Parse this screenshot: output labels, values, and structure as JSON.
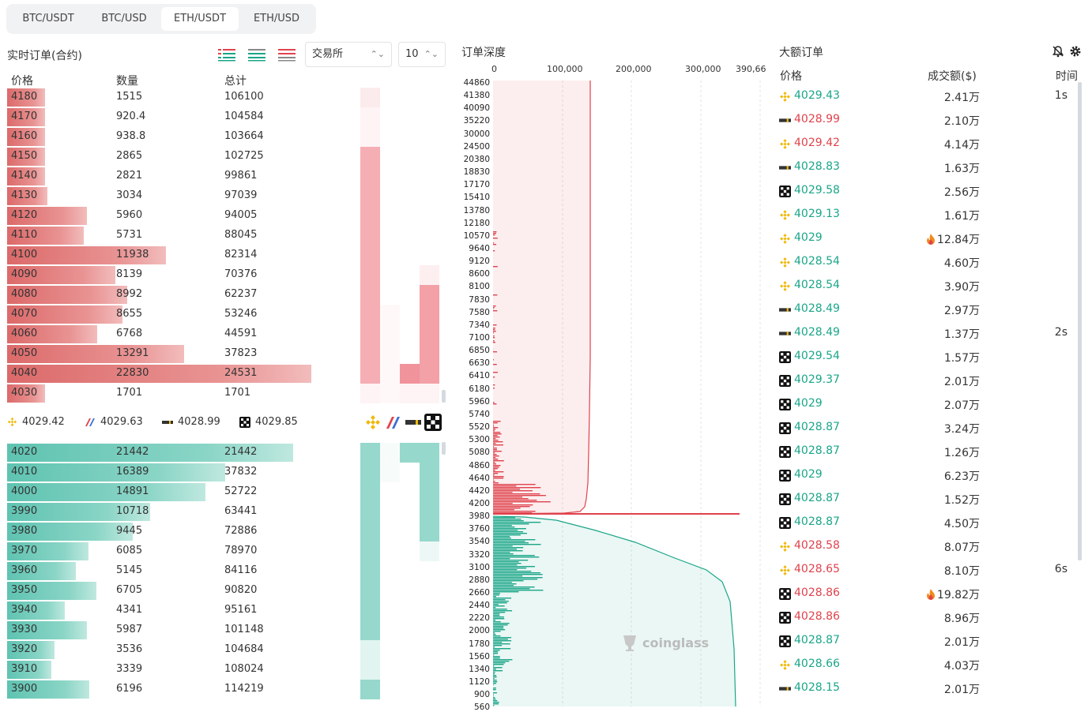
{
  "tabs": [
    {
      "label": "BTC/USDT",
      "active": false
    },
    {
      "label": "BTC/USD",
      "active": false
    },
    {
      "label": "ETH/USDT",
      "active": true
    },
    {
      "label": "ETH/USD",
      "active": false
    }
  ],
  "orderbook": {
    "title": "实时订单(合约)",
    "exchange_select": "交易所",
    "depth_select": "10",
    "headers": {
      "price": "价格",
      "qty": "数量",
      "total": "总计"
    },
    "max_qty": 22830,
    "asks": [
      {
        "price": "4180",
        "qty": "1515",
        "total": "106100"
      },
      {
        "price": "4170",
        "qty": "920.4",
        "total": "104584"
      },
      {
        "price": "4160",
        "qty": "938.8",
        "total": "103664"
      },
      {
        "price": "4150",
        "qty": "2865",
        "total": "102725"
      },
      {
        "price": "4140",
        "qty": "2821",
        "total": "99861"
      },
      {
        "price": "4130",
        "qty": "3034",
        "total": "97039"
      },
      {
        "price": "4120",
        "qty": "5960",
        "total": "94005"
      },
      {
        "price": "4110",
        "qty": "5731",
        "total": "88045"
      },
      {
        "price": "4100",
        "qty": "11938",
        "total": "82314"
      },
      {
        "price": "4090",
        "qty": "8139",
        "total": "70376"
      },
      {
        "price": "4080",
        "qty": "8992",
        "total": "62237"
      },
      {
        "price": "4070",
        "qty": "8655",
        "total": "53246"
      },
      {
        "price": "4060",
        "qty": "6768",
        "total": "44591"
      },
      {
        "price": "4050",
        "qty": "13291",
        "total": "37823"
      },
      {
        "price": "4040",
        "qty": "22830",
        "total": "24531"
      },
      {
        "price": "4030",
        "qty": "1701",
        "total": "1701"
      }
    ],
    "bids": [
      {
        "price": "4020",
        "qty": "21442",
        "total": "21442"
      },
      {
        "price": "4010",
        "qty": "16389",
        "total": "37832"
      },
      {
        "price": "4000",
        "qty": "14891",
        "total": "52722"
      },
      {
        "price": "3990",
        "qty": "10718",
        "total": "63441"
      },
      {
        "price": "3980",
        "qty": "9445",
        "total": "72886"
      },
      {
        "price": "3970",
        "qty": "6085",
        "total": "78970"
      },
      {
        "price": "3960",
        "qty": "5145",
        "total": "84116"
      },
      {
        "price": "3950",
        "qty": "6705",
        "total": "90820"
      },
      {
        "price": "3940",
        "qty": "4341",
        "total": "95161"
      },
      {
        "price": "3930",
        "qty": "5987",
        "total": "101148"
      },
      {
        "price": "3920",
        "qty": "3536",
        "total": "104684"
      },
      {
        "price": "3910",
        "qty": "3339",
        "total": "108024"
      },
      {
        "price": "3900",
        "qty": "6196",
        "total": "114219"
      }
    ],
    "exchange_prices": [
      {
        "exchange": "binance",
        "price": "4029.42"
      },
      {
        "exchange": "bitmex",
        "price": "4029.63"
      },
      {
        "exchange": "bybit",
        "price": "4028.99"
      },
      {
        "exchange": "okx",
        "price": "4029.85"
      }
    ]
  },
  "depth": {
    "title": "订单深度",
    "x_ticks": [
      "0",
      "100,000",
      "200,000",
      "300,000",
      "390,66"
    ],
    "y_ticks": [
      "44860",
      "41380",
      "40090",
      "35220",
      "30000",
      "24500",
      "20380",
      "18830",
      "17170",
      "15410",
      "13780",
      "12180",
      "10570",
      "9640",
      "9120",
      "8600",
      "8100",
      "7830",
      "7580",
      "7340",
      "7100",
      "6850",
      "6630",
      "6410",
      "6180",
      "5960",
      "5740",
      "5520",
      "5300",
      "5080",
      "4860",
      "4640",
      "4420",
      "4200",
      "3980",
      "3760",
      "3540",
      "3320",
      "3100",
      "2880",
      "2660",
      "2440",
      "2220",
      "2000",
      "1780",
      "1560",
      "1340",
      "1120",
      "900",
      "560"
    ],
    "watermark": "coinglass",
    "colors": {
      "ask": "#e0424c",
      "bid": "#1aa688"
    }
  },
  "large_orders": {
    "title": "大额订单",
    "headers": {
      "price": "价格",
      "amount": "成交额($)",
      "time": "时间"
    },
    "rows": [
      {
        "ex": "binance",
        "price": "4029.43",
        "side": "buy",
        "amount": "2.41万",
        "time": "1s",
        "hot": false
      },
      {
        "ex": "bybit",
        "price": "4028.99",
        "side": "sell",
        "amount": "2.10万",
        "time": "",
        "hot": false
      },
      {
        "ex": "binance",
        "price": "4029.42",
        "side": "sell",
        "amount": "4.14万",
        "time": "",
        "hot": false
      },
      {
        "ex": "bybit",
        "price": "4028.83",
        "side": "buy",
        "amount": "1.63万",
        "time": "",
        "hot": false
      },
      {
        "ex": "okx",
        "price": "4029.58",
        "side": "buy",
        "amount": "2.56万",
        "time": "",
        "hot": false
      },
      {
        "ex": "binance",
        "price": "4029.13",
        "side": "buy",
        "amount": "1.61万",
        "time": "",
        "hot": false
      },
      {
        "ex": "binance",
        "price": "4029",
        "side": "buy",
        "amount": "12.84万",
        "time": "",
        "hot": true
      },
      {
        "ex": "binance",
        "price": "4028.54",
        "side": "buy",
        "amount": "4.60万",
        "time": "",
        "hot": false
      },
      {
        "ex": "binance",
        "price": "4028.54",
        "side": "buy",
        "amount": "3.90万",
        "time": "",
        "hot": false
      },
      {
        "ex": "bybit",
        "price": "4028.49",
        "side": "buy",
        "amount": "2.97万",
        "time": "",
        "hot": false
      },
      {
        "ex": "bybit",
        "price": "4028.49",
        "side": "buy",
        "amount": "1.37万",
        "time": "2s",
        "hot": false
      },
      {
        "ex": "okx",
        "price": "4029.54",
        "side": "buy",
        "amount": "1.57万",
        "time": "",
        "hot": false
      },
      {
        "ex": "okx",
        "price": "4029.37",
        "side": "buy",
        "amount": "2.01万",
        "time": "",
        "hot": false
      },
      {
        "ex": "okx",
        "price": "4029",
        "side": "buy",
        "amount": "2.07万",
        "time": "",
        "hot": false
      },
      {
        "ex": "okx",
        "price": "4028.87",
        "side": "buy",
        "amount": "3.24万",
        "time": "",
        "hot": false
      },
      {
        "ex": "okx",
        "price": "4028.87",
        "side": "buy",
        "amount": "1.26万",
        "time": "",
        "hot": false
      },
      {
        "ex": "okx",
        "price": "4029",
        "side": "buy",
        "amount": "6.23万",
        "time": "",
        "hot": false
      },
      {
        "ex": "okx",
        "price": "4028.87",
        "side": "buy",
        "amount": "1.52万",
        "time": "",
        "hot": false
      },
      {
        "ex": "okx",
        "price": "4028.87",
        "side": "buy",
        "amount": "4.50万",
        "time": "",
        "hot": false
      },
      {
        "ex": "binance",
        "price": "4028.58",
        "side": "sell",
        "amount": "8.07万",
        "time": "",
        "hot": false
      },
      {
        "ex": "binance",
        "price": "4028.65",
        "side": "sell",
        "amount": "8.10万",
        "time": "6s",
        "hot": false
      },
      {
        "ex": "okx",
        "price": "4028.86",
        "side": "sell",
        "amount": "19.82万",
        "time": "",
        "hot": true
      },
      {
        "ex": "okx",
        "price": "4028.86",
        "side": "sell",
        "amount": "8.96万",
        "time": "",
        "hot": false
      },
      {
        "ex": "okx",
        "price": "4028.87",
        "side": "buy",
        "amount": "2.01万",
        "time": "",
        "hot": false
      },
      {
        "ex": "binance",
        "price": "4028.66",
        "side": "buy",
        "amount": "4.03万",
        "time": "",
        "hot": false
      },
      {
        "ex": "bybit",
        "price": "4028.15",
        "side": "buy",
        "amount": "2.01万",
        "time": "",
        "hot": false
      }
    ]
  }
}
